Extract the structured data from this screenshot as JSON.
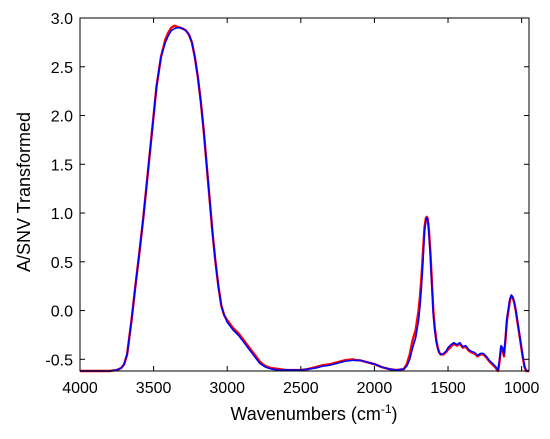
{
  "chart_data": {
    "type": "line",
    "xlabel": "Wavenumbers (cm",
    "xlabel_sup": "-1",
    "xlabel_suffix": ")",
    "ylabel": "A/SNV Transformed",
    "xlim": [
      4000,
      950
    ],
    "x_reversed": true,
    "ylim": [
      -0.62,
      3.0
    ],
    "x_ticks": [
      4000,
      3500,
      3000,
      2500,
      2000,
      1500,
      1000
    ],
    "x_tick_labels": [
      "4000",
      "3500",
      "3000",
      "2500",
      "2000",
      "1500",
      "1000"
    ],
    "y_ticks": [
      -0.5,
      0,
      0.5,
      1,
      1.5,
      2,
      2.5,
      3
    ],
    "y_tick_labels": [
      "-0.5",
      "0.0",
      "0.5",
      "1.0",
      "1.5",
      "2.0",
      "2.5",
      "3.0"
    ],
    "grid": false,
    "legend": "none",
    "series": [
      {
        "color": "#ff0000",
        "x": [
          4000,
          3900,
          3800,
          3750,
          3720,
          3700,
          3680,
          3650,
          3620,
          3600,
          3570,
          3550,
          3520,
          3500,
          3480,
          3450,
          3420,
          3400,
          3380,
          3360,
          3340,
          3320,
          3300,
          3280,
          3260,
          3240,
          3220,
          3200,
          3180,
          3160,
          3140,
          3120,
          3100,
          3080,
          3060,
          3040,
          3020,
          3000,
          2980,
          2960,
          2940,
          2920,
          2900,
          2880,
          2860,
          2840,
          2820,
          2800,
          2780,
          2760,
          2740,
          2720,
          2700,
          2650,
          2600,
          2550,
          2500,
          2450,
          2400,
          2350,
          2300,
          2250,
          2200,
          2150,
          2120,
          2100,
          2050,
          2000,
          1950,
          1900,
          1850,
          1800,
          1780,
          1760,
          1740,
          1720,
          1700,
          1690,
          1680,
          1670,
          1660,
          1650,
          1645,
          1640,
          1635,
          1630,
          1620,
          1610,
          1600,
          1590,
          1580,
          1570,
          1560,
          1550,
          1530,
          1510,
          1500,
          1480,
          1460,
          1440,
          1420,
          1400,
          1380,
          1360,
          1340,
          1320,
          1300,
          1280,
          1260,
          1240,
          1220,
          1200,
          1180,
          1160,
          1150,
          1140,
          1130,
          1120,
          1110,
          1100,
          1090,
          1080,
          1070,
          1060,
          1050,
          1040,
          1030,
          1020,
          1010,
          1000,
          990,
          980,
          970,
          960,
          950
        ],
        "y": [
          -0.62,
          -0.62,
          -0.62,
          -0.61,
          -0.59,
          -0.55,
          -0.45,
          -0.1,
          0.3,
          0.55,
          0.95,
          1.25,
          1.7,
          2.0,
          2.3,
          2.6,
          2.78,
          2.85,
          2.9,
          2.92,
          2.91,
          2.9,
          2.89,
          2.87,
          2.83,
          2.75,
          2.6,
          2.4,
          2.15,
          1.85,
          1.5,
          1.15,
          0.8,
          0.5,
          0.25,
          0.05,
          -0.05,
          -0.1,
          -0.14,
          -0.18,
          -0.21,
          -0.24,
          -0.28,
          -0.32,
          -0.36,
          -0.4,
          -0.44,
          -0.48,
          -0.52,
          -0.55,
          -0.57,
          -0.58,
          -0.59,
          -0.6,
          -0.61,
          -0.61,
          -0.61,
          -0.6,
          -0.58,
          -0.56,
          -0.55,
          -0.53,
          -0.51,
          -0.5,
          -0.51,
          -0.51,
          -0.53,
          -0.55,
          -0.58,
          -0.6,
          -0.61,
          -0.6,
          -0.55,
          -0.45,
          -0.3,
          -0.2,
          0.0,
          0.15,
          0.35,
          0.6,
          0.85,
          0.95,
          0.96,
          0.95,
          0.9,
          0.82,
          0.6,
          0.3,
          0.0,
          -0.18,
          -0.3,
          -0.38,
          -0.43,
          -0.45,
          -0.45,
          -0.42,
          -0.4,
          -0.37,
          -0.34,
          -0.36,
          -0.34,
          -0.38,
          -0.37,
          -0.41,
          -0.43,
          -0.44,
          -0.47,
          -0.45,
          -0.45,
          -0.48,
          -0.52,
          -0.55,
          -0.58,
          -0.62,
          -0.52,
          -0.38,
          -0.4,
          -0.47,
          -0.3,
          -0.1,
          0.0,
          0.1,
          0.15,
          0.13,
          0.08,
          0.0,
          -0.1,
          -0.2,
          -0.3,
          -0.4,
          -0.5,
          -0.58,
          -0.62,
          -0.62,
          -0.62
        ]
      },
      {
        "color": "#0000ff",
        "x": [
          4000,
          3900,
          3800,
          3750,
          3720,
          3700,
          3680,
          3650,
          3620,
          3600,
          3570,
          3550,
          3520,
          3500,
          3480,
          3450,
          3420,
          3400,
          3380,
          3360,
          3340,
          3320,
          3300,
          3280,
          3260,
          3240,
          3220,
          3200,
          3180,
          3160,
          3140,
          3120,
          3100,
          3080,
          3060,
          3040,
          3020,
          3000,
          2980,
          2960,
          2940,
          2920,
          2900,
          2880,
          2860,
          2840,
          2820,
          2800,
          2780,
          2760,
          2740,
          2720,
          2700,
          2650,
          2600,
          2550,
          2500,
          2450,
          2400,
          2350,
          2300,
          2250,
          2200,
          2150,
          2120,
          2100,
          2050,
          2000,
          1950,
          1900,
          1850,
          1800,
          1780,
          1760,
          1740,
          1720,
          1700,
          1690,
          1680,
          1670,
          1660,
          1650,
          1645,
          1640,
          1635,
          1630,
          1620,
          1610,
          1600,
          1590,
          1580,
          1570,
          1560,
          1550,
          1530,
          1510,
          1500,
          1480,
          1460,
          1440,
          1420,
          1400,
          1380,
          1360,
          1340,
          1320,
          1300,
          1280,
          1260,
          1240,
          1220,
          1200,
          1180,
          1160,
          1150,
          1140,
          1130,
          1120,
          1110,
          1100,
          1090,
          1080,
          1070,
          1060,
          1050,
          1040,
          1030,
          1020,
          1010,
          1000,
          990,
          980,
          970,
          960,
          950
        ],
        "y": [
          -0.62,
          -0.62,
          -0.62,
          -0.61,
          -0.59,
          -0.55,
          -0.45,
          -0.1,
          0.3,
          0.55,
          0.95,
          1.25,
          1.7,
          2.0,
          2.3,
          2.6,
          2.75,
          2.82,
          2.87,
          2.89,
          2.9,
          2.9,
          2.89,
          2.87,
          2.83,
          2.75,
          2.6,
          2.4,
          2.15,
          1.85,
          1.5,
          1.15,
          0.8,
          0.5,
          0.25,
          0.05,
          -0.05,
          -0.12,
          -0.16,
          -0.2,
          -0.23,
          -0.26,
          -0.3,
          -0.34,
          -0.38,
          -0.42,
          -0.46,
          -0.5,
          -0.54,
          -0.56,
          -0.58,
          -0.59,
          -0.6,
          -0.61,
          -0.61,
          -0.61,
          -0.61,
          -0.6,
          -0.59,
          -0.57,
          -0.56,
          -0.54,
          -0.52,
          -0.51,
          -0.51,
          -0.51,
          -0.53,
          -0.55,
          -0.58,
          -0.6,
          -0.61,
          -0.6,
          -0.57,
          -0.5,
          -0.38,
          -0.28,
          -0.1,
          0.05,
          0.25,
          0.5,
          0.8,
          0.93,
          0.95,
          0.94,
          0.89,
          0.8,
          0.55,
          0.25,
          -0.05,
          -0.2,
          -0.32,
          -0.39,
          -0.43,
          -0.45,
          -0.44,
          -0.41,
          -0.38,
          -0.35,
          -0.33,
          -0.35,
          -0.33,
          -0.37,
          -0.36,
          -0.4,
          -0.42,
          -0.43,
          -0.46,
          -0.44,
          -0.44,
          -0.47,
          -0.51,
          -0.54,
          -0.57,
          -0.61,
          -0.5,
          -0.36,
          -0.38,
          -0.45,
          -0.28,
          -0.08,
          0.02,
          0.12,
          0.16,
          0.14,
          0.09,
          0.01,
          -0.09,
          -0.19,
          -0.29,
          -0.39,
          -0.49,
          -0.57,
          -0.61,
          -0.62,
          -0.62
        ]
      }
    ]
  }
}
